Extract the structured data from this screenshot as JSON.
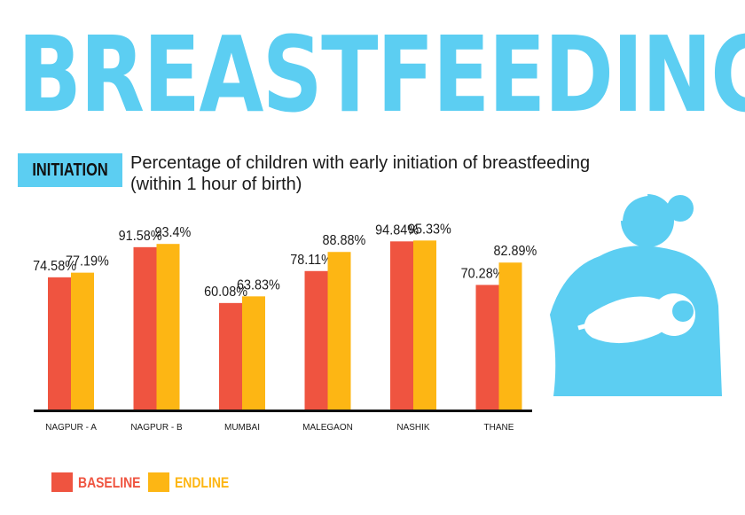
{
  "header": {
    "title": "BREASTFEEDING",
    "badge": "INITIATION"
  },
  "chart_data": {
    "type": "bar",
    "title": "Percentage of children with early initiation of breastfeeding",
    "subtitle": "(within 1 hour of birth)",
    "categories": [
      "NAGPUR - A",
      "NAGPUR - B",
      "MUMBAI",
      "MALEGAON",
      "NASHIK",
      "THANE"
    ],
    "series": [
      {
        "name": "BASELINE",
        "color": "#ef5440",
        "values": [
          74.58,
          91.58,
          60.08,
          78.11,
          94.84,
          70.28
        ],
        "labels": [
          "74.58%",
          "91.58%",
          "60.08%",
          "78.11%",
          "94.84%",
          "70.28%"
        ]
      },
      {
        "name": "ENDLINE",
        "color": "#fdb614",
        "values": [
          77.19,
          93.4,
          63.83,
          88.88,
          95.33,
          82.89
        ],
        "labels": [
          "77.19%",
          "93.4%",
          "63.83%",
          "88.88%",
          "95.33%",
          "82.89%"
        ]
      }
    ],
    "ylim": [
      0,
      100
    ],
    "grid": false,
    "legend": "bottom-left"
  },
  "colors": {
    "accent": "#5ccef2",
    "baseline": "#ef5440",
    "endline": "#fdb614"
  },
  "icons": {
    "illustration": "breastfeeding-mother-icon"
  }
}
